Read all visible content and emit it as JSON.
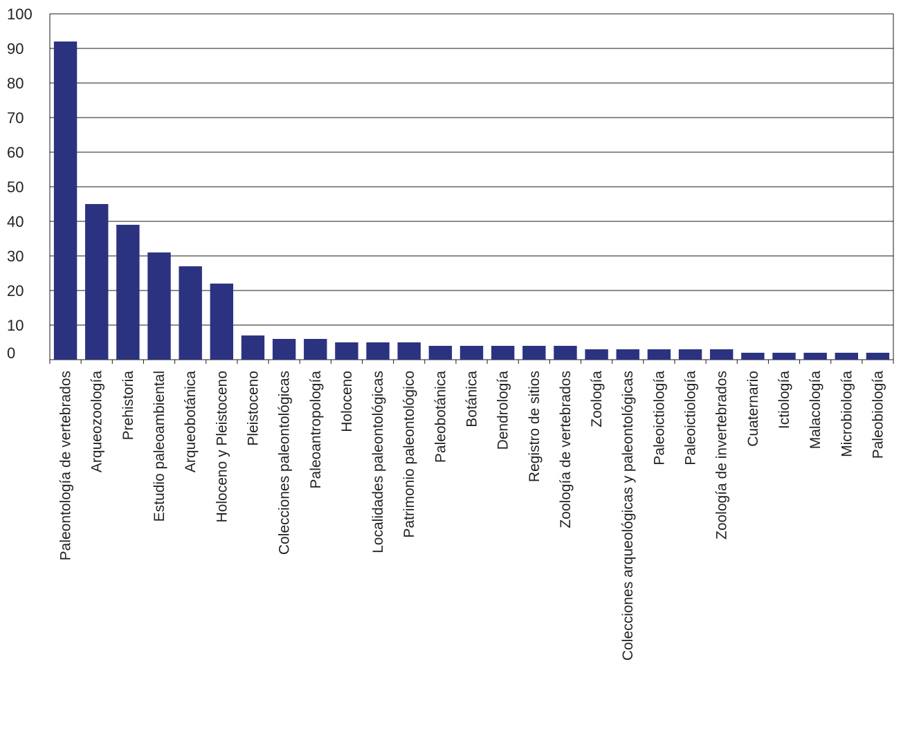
{
  "chart_data": {
    "type": "bar",
    "title": "",
    "xlabel": "",
    "ylabel": "",
    "ylim": [
      0,
      100
    ],
    "yticks": [
      0,
      10,
      20,
      30,
      40,
      50,
      60,
      70,
      80,
      90,
      100
    ],
    "grid": "horizontal",
    "bar_color": "#2b3380",
    "categories": [
      "Paleontología de vertebrados",
      "Arqueozoología",
      "Prehistoria",
      "Estudio paleoambiental",
      "Arqueobotánica",
      "Holoceno y Pleistoceno",
      "Pleistoceno",
      "Colecciones paleontológicas",
      "Paleoantropología",
      "Holoceno",
      "Localidades paleontológicas",
      "Patrimonio paleontológico",
      "Paleobotánica",
      "Botánica",
      "Dendrología",
      "Registro de sitios",
      "Zoología de vertebrados",
      "Zoología",
      "Colecciones arqueológicas y paleontológicas",
      "Paleoictiología",
      "Paleoictiología",
      "Zoología de invertebrados",
      "Cuaternario",
      "Ictiología",
      "Malacología",
      "Microbiología",
      "Paleobiología"
    ],
    "values": [
      92,
      45,
      39,
      31,
      27,
      22,
      7,
      6,
      6,
      5,
      5,
      5,
      4,
      4,
      4,
      4,
      4,
      3,
      3,
      3,
      3,
      3,
      2,
      2,
      2,
      2,
      2
    ]
  }
}
